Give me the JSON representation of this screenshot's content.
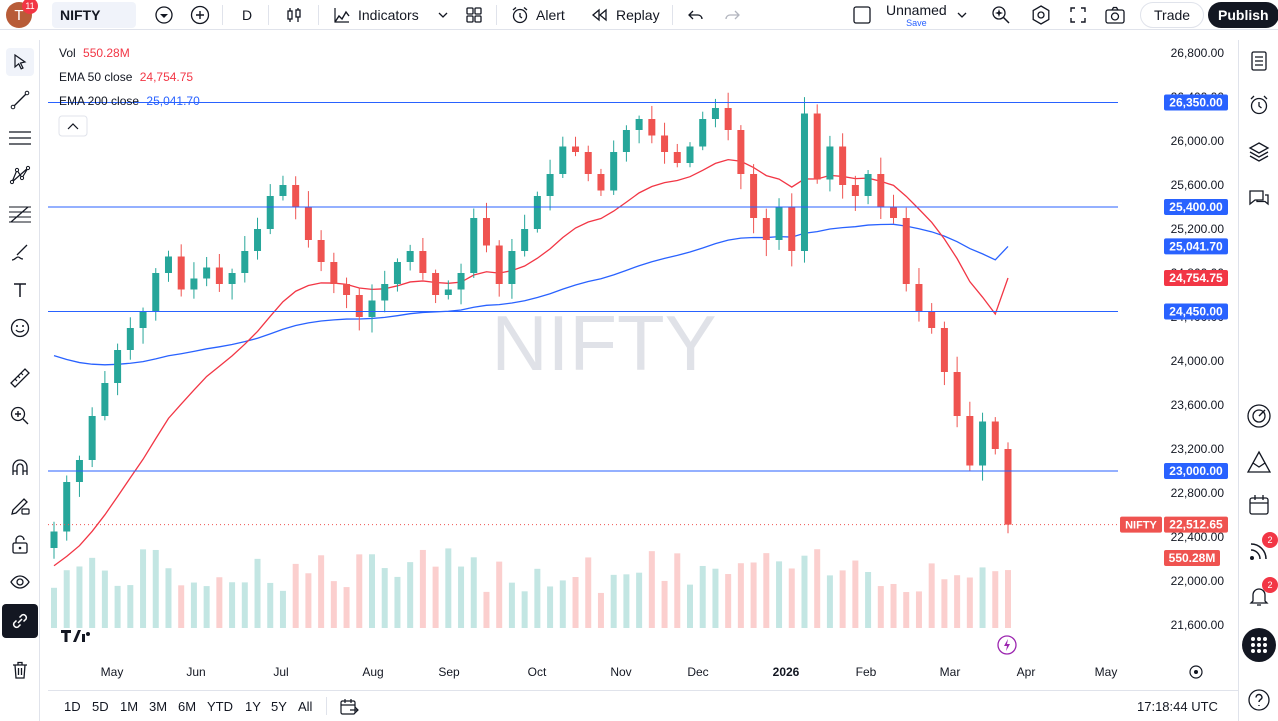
{
  "header": {
    "avatar_letter": "T",
    "notification_count": "11",
    "symbol": "NIFTY",
    "interval": "D",
    "indicators_label": "Indicators",
    "alert_label": "Alert",
    "replay_label": "Replay",
    "layout_name": "Unnamed",
    "layout_sub": "Save",
    "trade_label": "Trade",
    "publish_label": "Publish"
  },
  "legend": {
    "vol_label": "Vol",
    "vol_value": "550.28M",
    "ema50_label": "EMA 50 close",
    "ema50_value": "24,754.75",
    "ema200_label": "EMA 200 close",
    "ema200_value": "25,041.70"
  },
  "watermark": "NIFTY",
  "price_axis": {
    "ticks": [
      "26,800.00",
      "26,400.00",
      "26,000.00",
      "25,600.00",
      "25,200.00",
      "24,800.00",
      "24,400.00",
      "24,000.00",
      "23,600.00",
      "23,200.00",
      "22,800.00",
      "22,400.00",
      "22,000.00",
      "21,600.00"
    ],
    "labels": {
      "h1": "26,350.00",
      "h2": "25,400.00",
      "h3": "25,041.70",
      "h4": "24,754.75",
      "h5": "24,450.00",
      "h6": "23,000.00",
      "last_symbol": "NIFTY",
      "last": "22,512.65",
      "vol": "550.28M"
    }
  },
  "time_axis": [
    "May",
    "Jun",
    "Jul",
    "Aug",
    "Sep",
    "Oct",
    "Nov",
    "Dec",
    "2026",
    "Feb",
    "Mar",
    "Apr",
    "May"
  ],
  "bottom": {
    "ranges": [
      "1D",
      "5D",
      "1M",
      "3M",
      "6M",
      "YTD",
      "1Y",
      "5Y",
      "All"
    ],
    "clock": "17:18:44 UTC"
  },
  "right_badges": {
    "ideas": "2",
    "alerts": "2"
  },
  "colors": {
    "up": "#26a69a",
    "down": "#ef5350",
    "ema50": "#f23645",
    "ema200": "#2962ff",
    "hline": "#2962ff"
  },
  "chart_data": {
    "type": "candlestick",
    "title": "NIFTY",
    "interval": "D",
    "y_ticks": [
      26800,
      26400,
      26000,
      25600,
      25200,
      24800,
      24400,
      24000,
      23600,
      23200,
      22800,
      22400,
      22000,
      21600
    ],
    "horizontal_levels": [
      26350,
      25400,
      24450,
      23000
    ],
    "last_price": 22512.65,
    "ema50_last": 24754.75,
    "ema200_last": 25041.7,
    "volume_last": "550.28M",
    "approx_closes": [
      22450,
      22900,
      23100,
      23500,
      23800,
      24100,
      24300,
      24450,
      24800,
      24950,
      24650,
      24750,
      24850,
      24700,
      24800,
      25000,
      25200,
      25500,
      25600,
      25400,
      25100,
      24900,
      24700,
      24600,
      24400,
      24550,
      24700,
      24900,
      25000,
      24800,
      24600,
      24650,
      24800,
      25300,
      25050,
      24700,
      25000,
      25200,
      25500,
      25700,
      25950,
      25900,
      25700,
      25550,
      25900,
      26100,
      26200,
      26050,
      25900,
      25800,
      25950,
      26200,
      26300,
      26100,
      25700,
      25300,
      25100,
      25400,
      25000,
      26250,
      25650,
      25950,
      25600,
      25500,
      25700,
      25400,
      25300,
      24700,
      24450,
      24300,
      23900,
      23500,
      23050,
      23450,
      23200,
      22512.65
    ]
  }
}
